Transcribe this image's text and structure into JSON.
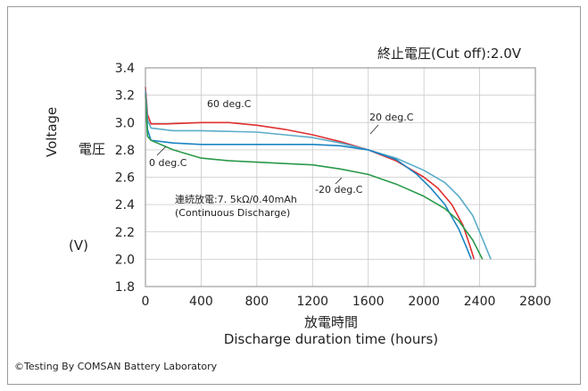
{
  "cutoff_label": "終止電圧(Cut off):2.0V",
  "ylabel_en": "Voltage",
  "ylabel_cjk": "電圧",
  "y_unit": "(V)",
  "xlabel_cjk": "放電時間",
  "xlabel_en": "Discharge duration time (hours)",
  "note_line1": "連続放電:7. 5kΩ/0.40mAh",
  "note_line2": "(Continuous Discharge)",
  "credit": "©Testing By COMSAN Battery Laboratory",
  "chart_data": {
    "type": "line",
    "xlabel": "Discharge duration time (hours)",
    "ylabel": "Voltage",
    "xlim": [
      0,
      2800
    ],
    "ylim": [
      1.8,
      3.4
    ],
    "x_ticks": [
      0,
      400,
      800,
      1200,
      1600,
      2000,
      2400,
      2800
    ],
    "y_ticks": [
      1.8,
      2.0,
      2.2,
      2.4,
      2.6,
      2.8,
      3.0,
      3.2,
      3.4
    ],
    "x_tick_labels": [
      "0",
      "400",
      "800",
      "1200",
      "1600",
      "2000",
      "2400",
      "2800"
    ],
    "y_tick_labels": [
      "1.8",
      "2.0",
      "2.2",
      "2.4",
      "2.6",
      "2.8",
      "3.0",
      "3.2",
      "3.4"
    ],
    "grid": true,
    "series": [
      {
        "name": "60 deg.C",
        "color": "#e03030",
        "points": [
          [
            0,
            3.26
          ],
          [
            15,
            3.06
          ],
          [
            40,
            2.99
          ],
          [
            150,
            2.99
          ],
          [
            400,
            3.0
          ],
          [
            600,
            3.0
          ],
          [
            800,
            2.98
          ],
          [
            1000,
            2.95
          ],
          [
            1200,
            2.91
          ],
          [
            1400,
            2.86
          ],
          [
            1600,
            2.8
          ],
          [
            1800,
            2.72
          ],
          [
            2000,
            2.6
          ],
          [
            2100,
            2.52
          ],
          [
            2200,
            2.4
          ],
          [
            2280,
            2.25
          ],
          [
            2330,
            2.1
          ],
          [
            2360,
            2.0
          ]
        ]
      },
      {
        "name": "20 deg.C",
        "color": "#5aacc8",
        "points": [
          [
            0,
            3.24
          ],
          [
            15,
            3.02
          ],
          [
            40,
            2.96
          ],
          [
            200,
            2.94
          ],
          [
            400,
            2.94
          ],
          [
            800,
            2.93
          ],
          [
            1000,
            2.91
          ],
          [
            1200,
            2.89
          ],
          [
            1400,
            2.85
          ],
          [
            1600,
            2.8
          ],
          [
            1800,
            2.74
          ],
          [
            2000,
            2.65
          ],
          [
            2150,
            2.56
          ],
          [
            2250,
            2.46
          ],
          [
            2350,
            2.32
          ],
          [
            2420,
            2.15
          ],
          [
            2480,
            2.0
          ]
        ]
      },
      {
        "name": "0 deg.C",
        "color": "#1c84c4",
        "points": [
          [
            0,
            3.22
          ],
          [
            15,
            2.95
          ],
          [
            40,
            2.87
          ],
          [
            200,
            2.85
          ],
          [
            400,
            2.84
          ],
          [
            800,
            2.84
          ],
          [
            1200,
            2.84
          ],
          [
            1400,
            2.83
          ],
          [
            1600,
            2.8
          ],
          [
            1800,
            2.73
          ],
          [
            1950,
            2.62
          ],
          [
            2050,
            2.52
          ],
          [
            2150,
            2.4
          ],
          [
            2250,
            2.22
          ],
          [
            2300,
            2.1
          ],
          [
            2340,
            2.0
          ]
        ]
      },
      {
        "name": "-20 deg.C",
        "color": "#2a9a4a",
        "points": [
          [
            0,
            3.2
          ],
          [
            15,
            2.9
          ],
          [
            40,
            2.87
          ],
          [
            200,
            2.8
          ],
          [
            400,
            2.74
          ],
          [
            600,
            2.72
          ],
          [
            1000,
            2.7
          ],
          [
            1200,
            2.69
          ],
          [
            1400,
            2.66
          ],
          [
            1600,
            2.62
          ],
          [
            1800,
            2.55
          ],
          [
            2000,
            2.46
          ],
          [
            2150,
            2.37
          ],
          [
            2250,
            2.28
          ],
          [
            2350,
            2.14
          ],
          [
            2420,
            2.0
          ]
        ]
      }
    ]
  }
}
